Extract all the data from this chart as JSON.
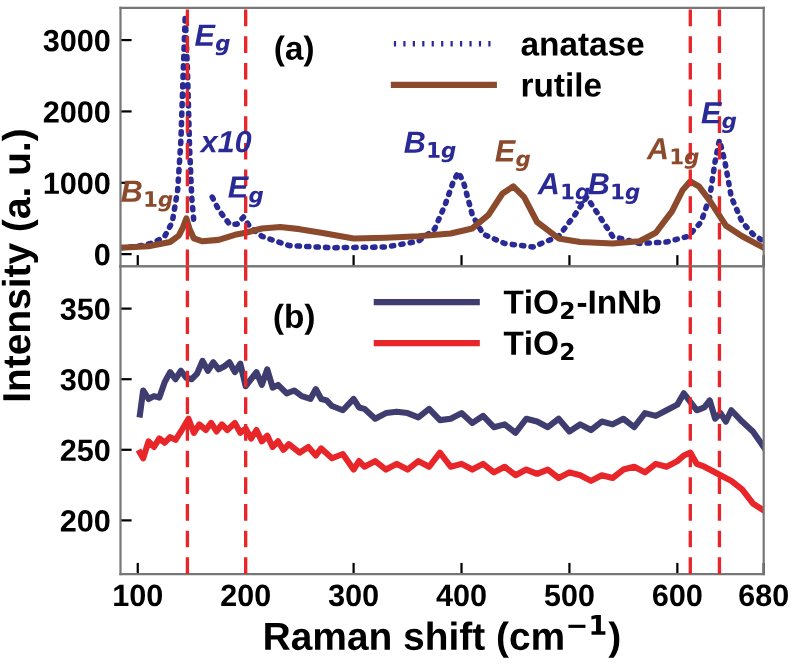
{
  "chart_data": [
    {
      "type": "line",
      "xlim": [
        84,
        680
      ],
      "xticks": [
        100,
        200,
        300,
        400,
        500,
        600,
        680
      ],
      "ylim": [
        -170,
        3450
      ],
      "yticks": [
        0,
        1000,
        2000,
        3000
      ],
      "tick_labels": "y",
      "legend": "top",
      "grid": false,
      "ylabel": "Intensity (a. u.)",
      "series": [
        {
          "name": "anatase",
          "color": "#2a2a96",
          "line_style": "dotted",
          "x": [
            84,
            100,
            115,
            125,
            132,
            137,
            140,
            142,
            144,
            146,
            148,
            150,
            152,
            155,
            169,
            175,
            185,
            192,
            198,
            204,
            215,
            240,
            280,
            330,
            360,
            375,
            385,
            392,
            397,
            402,
            410,
            420,
            440,
            466,
            490,
            505,
            516,
            527,
            540,
            565,
            590,
            610,
            622,
            630,
            635,
            639,
            644,
            650,
            660,
            670,
            680
          ],
          "values": [
            90,
            110,
            160,
            250,
            450,
            900,
            1600,
            2500,
            3350,
            2600,
            1500,
            800,
            450,
            null,
            800,
            620,
            420,
            420,
            520,
            380,
            250,
            120,
            90,
            100,
            180,
            350,
            700,
            1000,
            1150,
            1000,
            550,
            280,
            150,
            100,
            250,
            550,
            800,
            550,
            250,
            150,
            170,
            250,
            450,
            800,
            1300,
            1600,
            1300,
            800,
            450,
            280,
            180
          ]
        },
        {
          "name": "rutile",
          "color": "#8b4a2c",
          "line_style": "solid",
          "x": [
            84,
            110,
            130,
            138,
            142,
            145,
            148,
            152,
            160,
            175,
            190,
            200,
            215,
            232,
            250,
            270,
            300,
            330,
            360,
            390,
            410,
            425,
            438,
            448,
            458,
            470,
            490,
            510,
            540,
            565,
            580,
            595,
            605,
            612,
            620,
            630,
            645,
            660,
            680
          ],
          "values": [
            90,
            110,
            170,
            260,
            380,
            500,
            350,
            220,
            180,
            200,
            270,
            300,
            360,
            380,
            350,
            300,
            220,
            230,
            250,
            290,
            360,
            550,
            850,
            950,
            800,
            450,
            220,
            170,
            150,
            180,
            300,
            600,
            900,
            1020,
            950,
            750,
            400,
            250,
            90
          ]
        }
      ],
      "ref_lines": [
        {
          "axis": "x",
          "value": 146,
          "color": "#e8262a",
          "line_style": "dashed"
        },
        {
          "axis": "x",
          "value": 200,
          "color": "#e8262a",
          "line_style": "dashed"
        },
        {
          "axis": "x",
          "value": 612,
          "color": "#e8262a",
          "line_style": "dashed"
        },
        {
          "axis": "x",
          "value": 639,
          "color": "#e8262a",
          "line_style": "dashed"
        }
      ],
      "annotations": [
        "(a)",
        {
          "text": "B$_{1g}$",
          "x": 145,
          "y": 500
        },
        {
          "text": "E$_{g}$",
          "x": 144,
          "y": 3350
        },
        {
          "text": "x10",
          "x": 169,
          "y": 800
        },
        {
          "text": "E$_{g}$",
          "x": 198,
          "y": 520
        },
        {
          "text": "B$_{1g}$",
          "x": 397,
          "y": 1150
        },
        {
          "text": "E$_{g}$",
          "x": 448,
          "y": 950
        },
        {
          "text": "A$_{1g}$",
          "x": 516,
          "y": 800
        },
        {
          "text": "B$_{1g}$",
          "x": 516,
          "y": 800
        },
        {
          "text": "A$_{1g}$",
          "x": 612,
          "y": 1020
        },
        {
          "text": "E$_{g}$",
          "x": 639,
          "y": 1600
        }
      ]
    },
    {
      "type": "line",
      "xlim": [
        84,
        680
      ],
      "xticks": [
        100,
        200,
        300,
        400,
        500,
        600,
        680
      ],
      "ylim": [
        162,
        380
      ],
      "yticks": [
        200,
        250,
        300,
        350
      ],
      "legend": "top",
      "grid": false,
      "xlabel": "Raman shift (cm$^{−1}$)",
      "series": [
        {
          "name": "TiO$_{2}$-InNb",
          "color": "#3f3d70",
          "line_style": "solid",
          "x": [
            102,
            105,
            110,
            115,
            120,
            125,
            130,
            135,
            140,
            145,
            150,
            155,
            160,
            165,
            170,
            175,
            180,
            185,
            190,
            195,
            200,
            205,
            210,
            215,
            220,
            225,
            230,
            238,
            245,
            252,
            260,
            265,
            270,
            275,
            280,
            290,
            300,
            305,
            310,
            320,
            330,
            340,
            350,
            360,
            370,
            380,
            390,
            400,
            410,
            420,
            430,
            440,
            450,
            460,
            470,
            480,
            490,
            500,
            510,
            520,
            530,
            540,
            550,
            560,
            570,
            580,
            590,
            600,
            606,
            612,
            618,
            625,
            630,
            635,
            640,
            645,
            650,
            660,
            670,
            680
          ],
          "values": [
            275,
            292,
            286,
            288,
            287,
            298,
            305,
            300,
            306,
            301,
            300,
            304,
            313,
            306,
            312,
            307,
            309,
            312,
            305,
            311,
            295,
            300,
            305,
            296,
            307,
            294,
            296,
            290,
            292,
            288,
            286,
            293,
            286,
            285,
            281,
            278,
            286,
            280,
            279,
            272,
            276,
            277,
            276,
            273,
            279,
            271,
            272,
            276,
            269,
            274,
            266,
            268,
            262,
            272,
            270,
            266,
            272,
            263,
            268,
            264,
            270,
            268,
            272,
            266,
            276,
            274,
            278,
            282,
            290,
            284,
            278,
            280,
            285,
            272,
            276,
            270,
            278,
            270,
            263,
            252
          ]
        },
        {
          "name": "TiO$_{2}$",
          "color": "#e8262a",
          "line_style": "solid",
          "x": [
            102,
            105,
            110,
            115,
            120,
            125,
            130,
            135,
            140,
            147,
            152,
            157,
            163,
            168,
            173,
            178,
            183,
            190,
            195,
            200,
            205,
            210,
            215,
            220,
            225,
            230,
            235,
            240,
            250,
            258,
            265,
            270,
            280,
            290,
            300,
            305,
            310,
            320,
            330,
            340,
            350,
            360,
            370,
            380,
            390,
            400,
            410,
            420,
            430,
            440,
            450,
            460,
            470,
            480,
            490,
            500,
            510,
            520,
            530,
            540,
            550,
            560,
            570,
            580,
            590,
            600,
            606,
            612,
            618,
            625,
            630,
            640,
            650,
            660,
            670,
            680
          ],
          "values": [
            248,
            244,
            256,
            252,
            258,
            255,
            259,
            257,
            263,
            272,
            262,
            268,
            264,
            269,
            263,
            268,
            264,
            269,
            262,
            265,
            258,
            264,
            256,
            260,
            252,
            256,
            250,
            254,
            248,
            252,
            246,
            251,
            244,
            247,
            236,
            242,
            238,
            242,
            236,
            240,
            236,
            242,
            238,
            248,
            238,
            240,
            236,
            240,
            234,
            238,
            232,
            236,
            233,
            236,
            230,
            234,
            232,
            228,
            232,
            230,
            236,
            238,
            234,
            240,
            238,
            242,
            246,
            248,
            240,
            238,
            236,
            232,
            228,
            222,
            212,
            207
          ]
        }
      ],
      "ref_lines": [
        {
          "axis": "x",
          "value": 146,
          "color": "#e8262a",
          "line_style": "dashed"
        },
        {
          "axis": "x",
          "value": 200,
          "color": "#e8262a",
          "line_style": "dashed"
        },
        {
          "axis": "x",
          "value": 612,
          "color": "#e8262a",
          "line_style": "dashed"
        },
        {
          "axis": "x",
          "value": 639,
          "color": "#e8262a",
          "line_style": "dashed"
        }
      ],
      "annotations": [
        "(b)"
      ]
    }
  ]
}
